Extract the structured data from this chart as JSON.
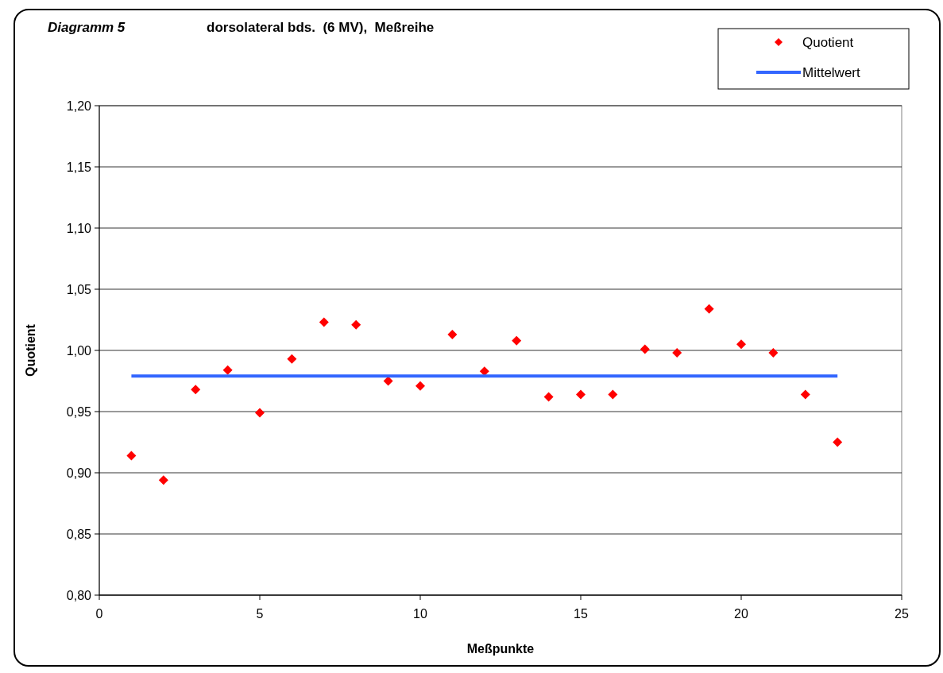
{
  "chart_data": {
    "type": "scatter",
    "title": "Diagramm 5",
    "subtitle": "dorsolateral bds.  (6 MV),  Meßreihe",
    "xlabel": "Meßpunkte",
    "ylabel": "Quotient",
    "x": [
      1,
      2,
      3,
      4,
      5,
      6,
      7,
      8,
      9,
      10,
      11,
      12,
      13,
      14,
      15,
      16,
      17,
      18,
      19,
      20,
      21,
      22,
      23
    ],
    "series": [
      {
        "name": "Quotient",
        "type": "scatter",
        "marker": "diamond",
        "color": "#ff0000",
        "values": [
          0.914,
          0.894,
          0.968,
          0.984,
          0.949,
          0.993,
          1.023,
          1.021,
          0.975,
          0.971,
          1.013,
          0.983,
          1.008,
          0.962,
          0.964,
          0.964,
          1.001,
          0.998,
          1.034,
          1.005,
          0.998,
          0.964,
          0.925
        ]
      },
      {
        "name": "Mittelwert",
        "type": "line",
        "marker": "none",
        "color": "#3366ff",
        "x": [
          1,
          23
        ],
        "values": [
          0.979,
          0.979
        ]
      }
    ],
    "xlim": [
      0,
      25
    ],
    "xticks": [
      0,
      5,
      10,
      15,
      20,
      25
    ],
    "ylim": [
      0.8,
      1.2
    ],
    "yticks": [
      {
        "value": 0.8,
        "label": "0,80"
      },
      {
        "value": 0.85,
        "label": "0,85"
      },
      {
        "value": 0.9,
        "label": "0,90"
      },
      {
        "value": 0.95,
        "label": "0,95"
      },
      {
        "value": 1.0,
        "label": "1,00"
      },
      {
        "value": 1.05,
        "label": "1,05"
      },
      {
        "value": 1.1,
        "label": "1,10"
      },
      {
        "value": 1.15,
        "label": "1,15"
      },
      {
        "value": 1.2,
        "label": "1,20"
      }
    ],
    "grid": "y",
    "legend": "top right"
  }
}
